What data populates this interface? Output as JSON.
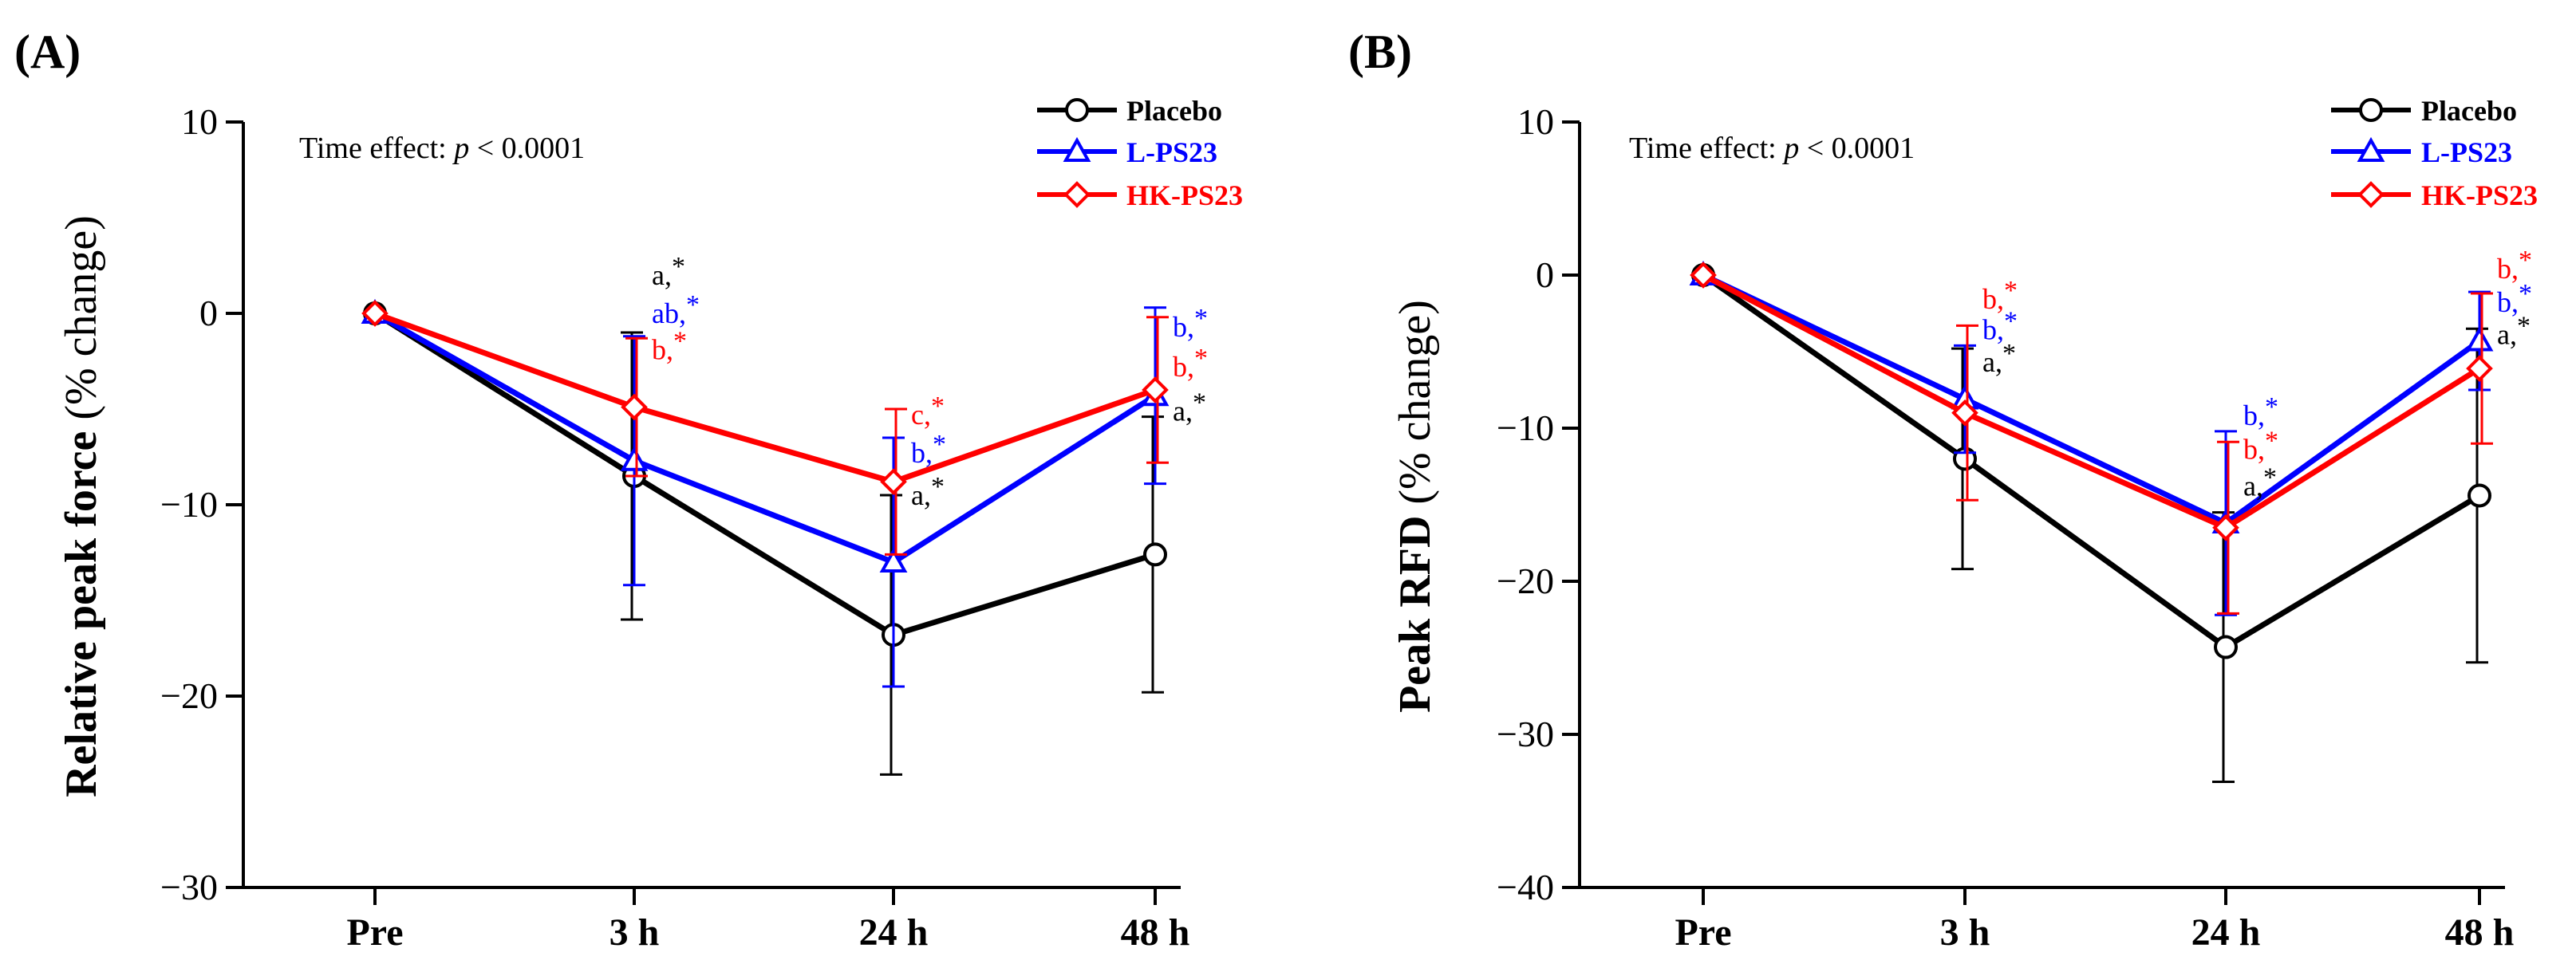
{
  "colors": {
    "placebo": "#000000",
    "lps23": "#0000ff",
    "hkps23": "#ff0000"
  },
  "chart_data": [
    {
      "type": "line",
      "panel_label": "(A)",
      "ylabel": "Relative peak force (% change)",
      "ylabel_main": "Relative peak force",
      "ylabel_unit": " (% change)",
      "ylim": [
        -30,
        10
      ],
      "yticks": [
        -30,
        -20,
        -10,
        0,
        10
      ],
      "ytick_labels": [
        "−30",
        "−20",
        "−10",
        "0",
        "10"
      ],
      "categories": [
        "Pre",
        "3 h",
        "24 h",
        "48 h"
      ],
      "annotation": {
        "prefix": "Time effect: ",
        "italic": "p",
        "suffix": " < 0.0001"
      },
      "legend_position": "top-right",
      "series": [
        {
          "name": "Placebo",
          "color_key": "placebo",
          "marker": "circle",
          "values": [
            0,
            -8.5,
            -16.8,
            -12.6
          ],
          "err_low": [
            0,
            7.5,
            7.3,
            7.2
          ],
          "err_high": [
            0,
            7.5,
            7.3,
            7.2
          ]
        },
        {
          "name": "L-PS23",
          "color_key": "lps23",
          "marker": "triangle",
          "values": [
            0,
            -7.7,
            -13.0,
            -4.3
          ],
          "err_low": [
            0,
            6.5,
            6.5,
            4.6
          ],
          "err_high": [
            0,
            6.5,
            6.5,
            4.6
          ]
        },
        {
          "name": "HK-PS23",
          "color_key": "hkps23",
          "marker": "diamond",
          "values": [
            0,
            -4.9,
            -8.8,
            -4.0
          ],
          "err_low": [
            0,
            3.6,
            3.8,
            3.8
          ],
          "err_high": [
            0,
            3.6,
            3.8,
            3.8
          ]
        }
      ],
      "sig_labels": [
        {
          "cat": 1,
          "y": 1.5,
          "text": "a",
          "color_key": "placebo"
        },
        {
          "cat": 1,
          "y": -0.5,
          "text": "ab",
          "color_key": "lps23"
        },
        {
          "cat": 1,
          "y": -2.4,
          "text": "b",
          "color_key": "hkps23"
        },
        {
          "cat": 2,
          "y": -5.8,
          "text": "c",
          "color_key": "hkps23"
        },
        {
          "cat": 2,
          "y": -7.8,
          "text": "b",
          "color_key": "lps23"
        },
        {
          "cat": 2,
          "y": -10.0,
          "text": "a",
          "color_key": "placebo"
        },
        {
          "cat": 3,
          "y": -1.2,
          "text": "b",
          "color_key": "lps23"
        },
        {
          "cat": 3,
          "y": -3.3,
          "text": "b",
          "color_key": "hkps23"
        },
        {
          "cat": 3,
          "y": -5.6,
          "text": "a",
          "color_key": "placebo"
        }
      ]
    },
    {
      "type": "line",
      "panel_label": "(B)",
      "ylabel": "Peak RFD (% change)",
      "ylabel_main": "Peak RFD",
      "ylabel_unit": " (% change)",
      "ylim": [
        -40,
        10
      ],
      "yticks": [
        -40,
        -30,
        -20,
        -10,
        0,
        10
      ],
      "ytick_labels": [
        "−40",
        "−30",
        "−20",
        "−10",
        "0",
        "10"
      ],
      "categories": [
        "Pre",
        "3 h",
        "24 h",
        "48 h"
      ],
      "annotation": {
        "prefix": "Time effect: ",
        "italic": "p",
        "suffix": " < 0.0001"
      },
      "legend_position": "top-right",
      "series": [
        {
          "name": "Placebo",
          "color_key": "placebo",
          "marker": "circle",
          "values": [
            0,
            -12.0,
            -24.3,
            -14.4
          ],
          "err_low": [
            0,
            7.2,
            8.8,
            10.9
          ],
          "err_high": [
            0,
            7.2,
            8.8,
            10.9
          ]
        },
        {
          "name": "L-PS23",
          "color_key": "lps23",
          "marker": "triangle",
          "values": [
            0,
            -8.1,
            -16.2,
            -4.3
          ],
          "err_low": [
            0,
            3.5,
            6.0,
            3.2
          ],
          "err_high": [
            0,
            3.5,
            6.0,
            3.2
          ]
        },
        {
          "name": "HK-PS23",
          "color_key": "hkps23",
          "marker": "diamond",
          "values": [
            0,
            -9.0,
            -16.5,
            -6.1
          ],
          "err_low": [
            0,
            5.7,
            5.6,
            4.9
          ],
          "err_high": [
            0,
            5.7,
            5.6,
            4.9
          ]
        }
      ],
      "sig_labels": [
        {
          "cat": 1,
          "y": -2.2,
          "text": "b",
          "color_key": "hkps23"
        },
        {
          "cat": 1,
          "y": -4.2,
          "text": "b",
          "color_key": "lps23"
        },
        {
          "cat": 1,
          "y": -6.3,
          "text": "a",
          "color_key": "placebo"
        },
        {
          "cat": 2,
          "y": -9.8,
          "text": "b",
          "color_key": "lps23"
        },
        {
          "cat": 2,
          "y": -12.0,
          "text": "b",
          "color_key": "hkps23"
        },
        {
          "cat": 2,
          "y": -14.4,
          "text": "a",
          "color_key": "placebo"
        },
        {
          "cat": 3,
          "y": -0.2,
          "text": "b",
          "color_key": "hkps23"
        },
        {
          "cat": 3,
          "y": -2.4,
          "text": "b",
          "color_key": "lps23"
        },
        {
          "cat": 3,
          "y": -4.5,
          "text": "a",
          "color_key": "placebo"
        }
      ]
    }
  ]
}
